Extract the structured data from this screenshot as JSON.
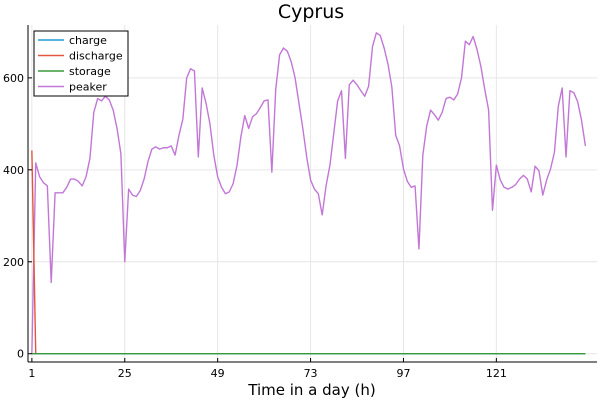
{
  "chart_data": {
    "type": "line",
    "title": "Cyprus",
    "xlabel": "Time in a day (h)",
    "ylabel": "",
    "xlim": [
      0,
      147
    ],
    "ylim": [
      -18,
      715
    ],
    "xticks": [
      1,
      25,
      49,
      73,
      97,
      121
    ],
    "yticks": [
      0,
      200,
      400,
      600
    ],
    "grid": true,
    "legend_position": "top-left",
    "series": [
      {
        "name": "charge",
        "color": "#1f9bd6",
        "x": [
          1,
          2,
          144
        ],
        "y": [
          0,
          0,
          0
        ]
      },
      {
        "name": "discharge",
        "color": "#e0573f",
        "x": [
          1,
          2
        ],
        "y": [
          442,
          0
        ]
      },
      {
        "name": "storage",
        "color": "#3a9a3a",
        "x": [
          1,
          2,
          144
        ],
        "y": [
          0,
          0,
          0
        ]
      },
      {
        "name": "peaker",
        "color": "#c277d6",
        "x": [
          1,
          2,
          3,
          4,
          5,
          6,
          7,
          8,
          9,
          10,
          11,
          12,
          13,
          14,
          15,
          16,
          17,
          18,
          19,
          20,
          21,
          22,
          23,
          24,
          25,
          26,
          27,
          28,
          29,
          30,
          31,
          32,
          33,
          34,
          35,
          36,
          37,
          38,
          39,
          40,
          41,
          42,
          43,
          44,
          45,
          46,
          47,
          48,
          49,
          50,
          51,
          52,
          53,
          54,
          55,
          56,
          57,
          58,
          59,
          60,
          61,
          62,
          63,
          64,
          65,
          66,
          67,
          68,
          69,
          70,
          71,
          72,
          73,
          74,
          75,
          76,
          77,
          78,
          79,
          80,
          81,
          82,
          83,
          84,
          85,
          86,
          87,
          88,
          89,
          90,
          91,
          92,
          93,
          94,
          95,
          96,
          97,
          98,
          99,
          100,
          101,
          102,
          103,
          104,
          105,
          106,
          107,
          108,
          109,
          110,
          111,
          112,
          113,
          114,
          115,
          116,
          117,
          118,
          119,
          120,
          121,
          122,
          123,
          124,
          125,
          126,
          127,
          128,
          129,
          130,
          131,
          132,
          133,
          134,
          135,
          136,
          137,
          138,
          139,
          140,
          141,
          142,
          143,
          144
        ],
        "y": [
          0,
          415,
          385,
          372,
          365,
          155,
          350,
          350,
          350,
          362,
          380,
          380,
          375,
          365,
          385,
          425,
          525,
          555,
          550,
          560,
          552,
          530,
          490,
          435,
          200,
          358,
          345,
          342,
          355,
          380,
          418,
          445,
          450,
          445,
          448,
          448,
          452,
          432,
          475,
          510,
          600,
          620,
          615,
          428,
          578,
          545,
          500,
          432,
          385,
          362,
          348,
          352,
          370,
          410,
          472,
          518,
          490,
          515,
          522,
          535,
          550,
          552,
          395,
          575,
          650,
          665,
          658,
          635,
          600,
          545,
          490,
          428,
          378,
          358,
          348,
          302,
          365,
          410,
          480,
          550,
          572,
          425,
          585,
          595,
          585,
          572,
          560,
          582,
          668,
          698,
          692,
          665,
          630,
          580,
          475,
          452,
          402,
          375,
          362,
          365,
          228,
          432,
          495,
          530,
          520,
          508,
          525,
          555,
          558,
          552,
          565,
          600,
          680,
          672,
          690,
          662,
          625,
          575,
          530,
          312,
          410,
          378,
          362,
          358,
          362,
          368,
          380,
          388,
          380,
          352,
          408,
          398,
          345,
          378,
          402,
          438,
          538,
          578,
          428,
          572,
          568,
          548,
          508,
          452
        ]
      }
    ]
  }
}
